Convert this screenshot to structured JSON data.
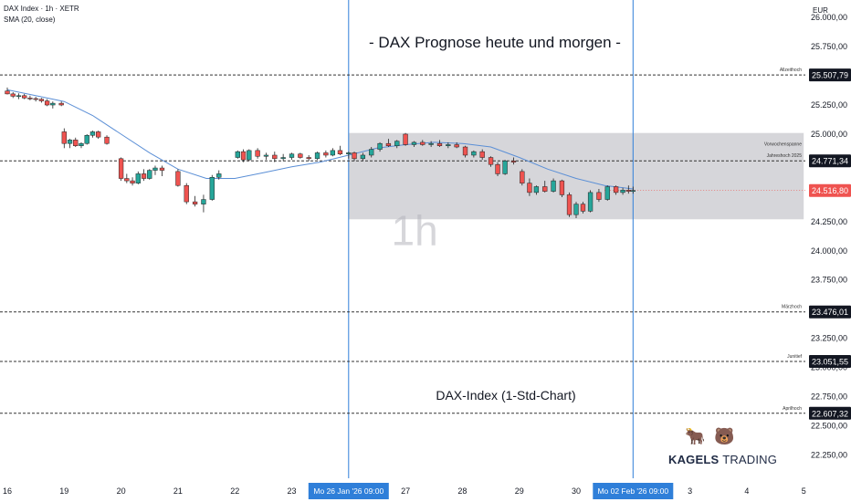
{
  "header": {
    "symbol": "DAX Index · 1h · XETR",
    "indicator": "SMA (20, close)",
    "currency": "EUR"
  },
  "chart_data": {
    "type": "candlestick",
    "title": "- DAX Prognose heute und morgen -",
    "subtitle": "DAX-Index (1-Std-Chart)",
    "watermark": "1h",
    "y_ticks": [
      "26.000,00",
      "25.750,00",
      "25.250,00",
      "25.000,00",
      "24.250,00",
      "24.000,00",
      "23.750,00",
      "23.250,00",
      "23.000,00",
      "22.750,00",
      "22.500,00",
      "22.250,00"
    ],
    "y_ticks_values": [
      26000,
      25750,
      25250,
      25000,
      24250,
      24000,
      23750,
      23250,
      23000,
      22750,
      22500,
      22250
    ],
    "ylim": [
      22050,
      26150
    ],
    "x_ticks": [
      "16",
      "19",
      "20",
      "21",
      "22",
      "23",
      "27",
      "28",
      "29",
      "30",
      "3",
      "4",
      "5"
    ],
    "x_ticks_index": [
      0,
      1,
      2,
      3,
      4,
      5,
      7,
      8,
      9,
      10,
      12,
      13,
      14
    ],
    "x_range": [
      0,
      14
    ],
    "vertical_markers": [
      {
        "index": 6,
        "label": "Mo 26 Jan '26   09:00"
      },
      {
        "index": 11,
        "label": "Mo 02 Feb '26   09:00"
      }
    ],
    "zone": {
      "x_from": 6,
      "x_to": 14,
      "y_from": 24270,
      "y_to": 25010,
      "label": "Vorwochenspanne"
    },
    "levels": [
      {
        "value": 25507.79,
        "label": "Allzeithoch",
        "price": "25.507,79",
        "style": "dashed"
      },
      {
        "value": 24771.34,
        "label": "Jahreshoch 2025",
        "price": "24.771,34",
        "style": "dashed"
      },
      {
        "value": 24516.8,
        "label": "",
        "price": "24.516,80",
        "style": "current"
      },
      {
        "value": 23476.01,
        "label": "Märzhoch",
        "price": "23.476,01",
        "style": "dashed"
      },
      {
        "value": 23051.55,
        "label": "Junitief",
        "price": "23.051,55",
        "style": "dashed"
      },
      {
        "value": 22607.32,
        "label": "Aprilhoch",
        "price": "22.607,32",
        "style": "dashed"
      }
    ],
    "candles": [
      {
        "x": 0.0,
        "o": 25370,
        "h": 25400,
        "l": 25340,
        "c": 25345
      },
      {
        "x": 0.1,
        "o": 25345,
        "h": 25360,
        "l": 25310,
        "c": 25325
      },
      {
        "x": 0.2,
        "o": 25325,
        "h": 25350,
        "l": 25300,
        "c": 25330
      },
      {
        "x": 0.3,
        "o": 25330,
        "h": 25345,
        "l": 25300,
        "c": 25310
      },
      {
        "x": 0.4,
        "o": 25310,
        "h": 25330,
        "l": 25290,
        "c": 25305
      },
      {
        "x": 0.5,
        "o": 25305,
        "h": 25320,
        "l": 25280,
        "c": 25300
      },
      {
        "x": 0.6,
        "o": 25300,
        "h": 25310,
        "l": 25270,
        "c": 25285
      },
      {
        "x": 0.7,
        "o": 25285,
        "h": 25300,
        "l": 25240,
        "c": 25250
      },
      {
        "x": 0.8,
        "o": 25250,
        "h": 25280,
        "l": 25220,
        "c": 25265
      },
      {
        "x": 0.95,
        "o": 25265,
        "h": 25280,
        "l": 25240,
        "c": 25250
      },
      {
        "x": 1.0,
        "o": 25020,
        "h": 25050,
        "l": 24880,
        "c": 24920
      },
      {
        "x": 1.1,
        "o": 24920,
        "h": 24960,
        "l": 24880,
        "c": 24950
      },
      {
        "x": 1.2,
        "o": 24950,
        "h": 24970,
        "l": 24890,
        "c": 24900
      },
      {
        "x": 1.3,
        "o": 24900,
        "h": 24930,
        "l": 24880,
        "c": 24920
      },
      {
        "x": 1.4,
        "o": 24920,
        "h": 25000,
        "l": 24910,
        "c": 24990
      },
      {
        "x": 1.5,
        "o": 24990,
        "h": 25030,
        "l": 24970,
        "c": 25020
      },
      {
        "x": 1.6,
        "o": 25020,
        "h": 25030,
        "l": 24960,
        "c": 24975
      },
      {
        "x": 1.75,
        "o": 24975,
        "h": 24990,
        "l": 24910,
        "c": 24920
      },
      {
        "x": 2.0,
        "o": 24790,
        "h": 24800,
        "l": 24600,
        "c": 24620
      },
      {
        "x": 2.1,
        "o": 24620,
        "h": 24660,
        "l": 24580,
        "c": 24600
      },
      {
        "x": 2.2,
        "o": 24600,
        "h": 24630,
        "l": 24560,
        "c": 24580
      },
      {
        "x": 2.3,
        "o": 24580,
        "h": 24680,
        "l": 24570,
        "c": 24660
      },
      {
        "x": 2.4,
        "o": 24660,
        "h": 24700,
        "l": 24600,
        "c": 24620
      },
      {
        "x": 2.5,
        "o": 24620,
        "h": 24700,
        "l": 24610,
        "c": 24690
      },
      {
        "x": 2.6,
        "o": 24690,
        "h": 24730,
        "l": 24650,
        "c": 24710
      },
      {
        "x": 2.72,
        "o": 24710,
        "h": 24730,
        "l": 24640,
        "c": 24690
      },
      {
        "x": 3.0,
        "o": 24680,
        "h": 24700,
        "l": 24550,
        "c": 24560
      },
      {
        "x": 3.15,
        "o": 24560,
        "h": 24580,
        "l": 24400,
        "c": 24420
      },
      {
        "x": 3.3,
        "o": 24420,
        "h": 24470,
        "l": 24380,
        "c": 24400
      },
      {
        "x": 3.45,
        "o": 24400,
        "h": 24480,
        "l": 24330,
        "c": 24440
      },
      {
        "x": 3.6,
        "o": 24440,
        "h": 24650,
        "l": 24430,
        "c": 24630
      },
      {
        "x": 3.72,
        "o": 24630,
        "h": 24690,
        "l": 24610,
        "c": 24660
      },
      {
        "x": 4.05,
        "o": 24800,
        "h": 24860,
        "l": 24790,
        "c": 24850
      },
      {
        "x": 4.15,
        "o": 24850,
        "h": 24870,
        "l": 24760,
        "c": 24780
      },
      {
        "x": 4.25,
        "o": 24780,
        "h": 24870,
        "l": 24770,
        "c": 24860
      },
      {
        "x": 4.4,
        "o": 24860,
        "h": 24880,
        "l": 24790,
        "c": 24810
      },
      {
        "x": 4.55,
        "o": 24810,
        "h": 24840,
        "l": 24780,
        "c": 24820
      },
      {
        "x": 4.7,
        "o": 24820,
        "h": 24850,
        "l": 24760,
        "c": 24790
      },
      {
        "x": 4.85,
        "o": 24790,
        "h": 24830,
        "l": 24770,
        "c": 24800
      },
      {
        "x": 5.0,
        "o": 24800,
        "h": 24840,
        "l": 24780,
        "c": 24830
      },
      {
        "x": 5.15,
        "o": 24830,
        "h": 24840,
        "l": 24790,
        "c": 24800
      },
      {
        "x": 5.3,
        "o": 24800,
        "h": 24820,
        "l": 24770,
        "c": 24790
      },
      {
        "x": 5.45,
        "o": 24790,
        "h": 24850,
        "l": 24780,
        "c": 24840
      },
      {
        "x": 5.6,
        "o": 24840,
        "h": 24860,
        "l": 24800,
        "c": 24820
      },
      {
        "x": 5.72,
        "o": 24820,
        "h": 24880,
        "l": 24810,
        "c": 24860
      },
      {
        "x": 5.85,
        "o": 24860,
        "h": 24900,
        "l": 24820,
        "c": 24830
      },
      {
        "x": 6.0,
        "o": 24830,
        "h": 24850,
        "l": 24790,
        "c": 24840
      },
      {
        "x": 6.1,
        "o": 24840,
        "h": 24850,
        "l": 24770,
        "c": 24790
      },
      {
        "x": 6.25,
        "o": 24790,
        "h": 24840,
        "l": 24770,
        "c": 24820
      },
      {
        "x": 6.4,
        "o": 24820,
        "h": 24890,
        "l": 24800,
        "c": 24870
      },
      {
        "x": 6.55,
        "o": 24870,
        "h": 24930,
        "l": 24850,
        "c": 24920
      },
      {
        "x": 6.7,
        "o": 24920,
        "h": 24960,
        "l": 24890,
        "c": 24900
      },
      {
        "x": 6.85,
        "o": 24900,
        "h": 24950,
        "l": 24880,
        "c": 24940
      },
      {
        "x": 7.0,
        "o": 25000,
        "h": 25010,
        "l": 24900,
        "c": 24910
      },
      {
        "x": 7.15,
        "o": 24910,
        "h": 24940,
        "l": 24890,
        "c": 24930
      },
      {
        "x": 7.3,
        "o": 24930,
        "h": 24950,
        "l": 24900,
        "c": 24910
      },
      {
        "x": 7.45,
        "o": 24910,
        "h": 24940,
        "l": 24890,
        "c": 24920
      },
      {
        "x": 7.6,
        "o": 24920,
        "h": 24950,
        "l": 24890,
        "c": 24900
      },
      {
        "x": 7.75,
        "o": 24900,
        "h": 24930,
        "l": 24880,
        "c": 24910
      },
      {
        "x": 7.9,
        "o": 24910,
        "h": 24930,
        "l": 24880,
        "c": 24890
      },
      {
        "x": 8.05,
        "o": 24890,
        "h": 24900,
        "l": 24800,
        "c": 24820
      },
      {
        "x": 8.2,
        "o": 24820,
        "h": 24860,
        "l": 24800,
        "c": 24850
      },
      {
        "x": 8.35,
        "o": 24850,
        "h": 24870,
        "l": 24780,
        "c": 24800
      },
      {
        "x": 8.5,
        "o": 24800,
        "h": 24810,
        "l": 24720,
        "c": 24740
      },
      {
        "x": 8.62,
        "o": 24740,
        "h": 24760,
        "l": 24640,
        "c": 24660
      },
      {
        "x": 8.75,
        "o": 24660,
        "h": 24780,
        "l": 24650,
        "c": 24770
      },
      {
        "x": 8.9,
        "o": 24770,
        "h": 24800,
        "l": 24740,
        "c": 24760
      },
      {
        "x": 9.05,
        "o": 24680,
        "h": 24700,
        "l": 24560,
        "c": 24580
      },
      {
        "x": 9.18,
        "o": 24580,
        "h": 24620,
        "l": 24470,
        "c": 24500
      },
      {
        "x": 9.3,
        "o": 24500,
        "h": 24560,
        "l": 24480,
        "c": 24550
      },
      {
        "x": 9.45,
        "o": 24550,
        "h": 24600,
        "l": 24500,
        "c": 24510
      },
      {
        "x": 9.6,
        "o": 24510,
        "h": 24620,
        "l": 24500,
        "c": 24600
      },
      {
        "x": 9.75,
        "o": 24600,
        "h": 24610,
        "l": 24460,
        "c": 24480
      },
      {
        "x": 9.88,
        "o": 24480,
        "h": 24500,
        "l": 24290,
        "c": 24310
      },
      {
        "x": 10.0,
        "o": 24310,
        "h": 24420,
        "l": 24280,
        "c": 24400
      },
      {
        "x": 10.12,
        "o": 24400,
        "h": 24420,
        "l": 24320,
        "c": 24340
      },
      {
        "x": 10.25,
        "o": 24340,
        "h": 24520,
        "l": 24330,
        "c": 24500
      },
      {
        "x": 10.4,
        "o": 24500,
        "h": 24530,
        "l": 24420,
        "c": 24440
      },
      {
        "x": 10.55,
        "o": 24440,
        "h": 24560,
        "l": 24430,
        "c": 24550
      },
      {
        "x": 10.7,
        "o": 24550,
        "h": 24560,
        "l": 24480,
        "c": 24500
      },
      {
        "x": 10.82,
        "o": 24500,
        "h": 24540,
        "l": 24480,
        "c": 24520
      },
      {
        "x": 10.92,
        "o": 24520,
        "h": 24560,
        "l": 24490,
        "c": 24510
      },
      {
        "x": 11.0,
        "o": 24510,
        "h": 24550,
        "l": 24490,
        "c": 24517
      }
    ],
    "sma": {
      "name": "SMA (20, close)",
      "x": [
        0,
        0.5,
        1.0,
        1.5,
        2.0,
        2.5,
        3.0,
        3.5,
        4.0,
        4.5,
        5.0,
        5.5,
        6.0,
        6.5,
        7.0,
        7.5,
        8.0,
        8.5,
        9.0,
        9.5,
        10.0,
        10.5,
        11.0
      ],
      "y": [
        25380,
        25330,
        25280,
        25160,
        25000,
        24840,
        24700,
        24620,
        24620,
        24670,
        24720,
        24760,
        24820,
        24880,
        24910,
        24930,
        24920,
        24890,
        24800,
        24700,
        24620,
        24560,
        24530
      ]
    },
    "colors": {
      "up": "#26a69a",
      "down": "#ef5350",
      "sma": "#5b8fd6",
      "marker": "#2f7fd9",
      "zone": "#c8c8cd"
    }
  }
}
